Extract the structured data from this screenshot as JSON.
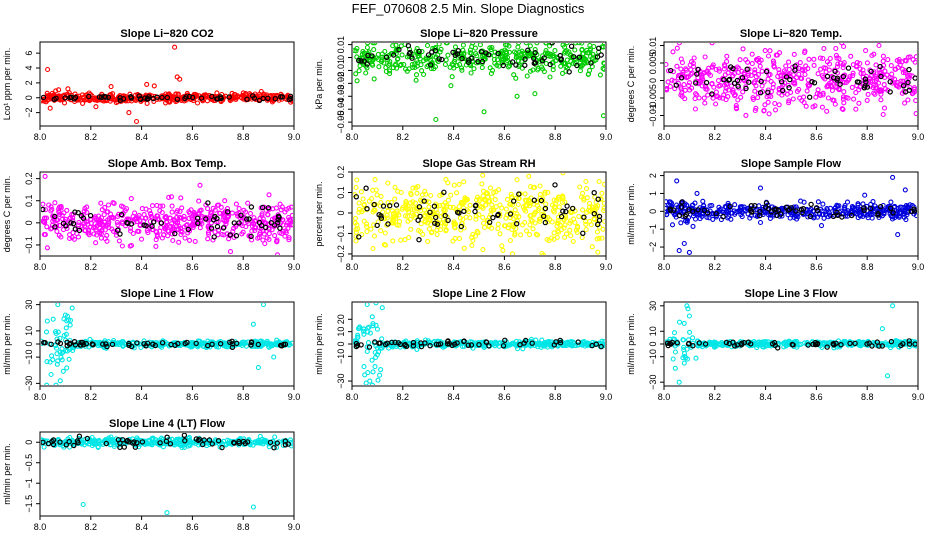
{
  "page": {
    "title": "FEF_070608  2.5 Min. Slope Diagnostics"
  },
  "style": {
    "hi_color": "#000000",
    "frame_color": "#000000"
  },
  "chart_data": [
    {
      "type": "scatter",
      "title": "Slope Li−820 CO2",
      "ylabel": "Lco¹ ppm per min.",
      "xlim": [
        8.0,
        9.0
      ],
      "ylim": [
        -3.8,
        7.5
      ],
      "xticks": [
        "8.0",
        "8.2",
        "8.4",
        "8.6",
        "8.8",
        "9.0"
      ],
      "yticks": [
        -2,
        0,
        2,
        4,
        6
      ],
      "color": "#ff0000",
      "noise": 0.3,
      "hi_noise": 0.15,
      "n": 420,
      "nhi": 55,
      "seed": 11,
      "outliers": [
        [
          8.03,
          3.8
        ],
        [
          8.04,
          -1.4
        ],
        [
          8.11,
          1.2
        ],
        [
          8.22,
          -1.2
        ],
        [
          8.28,
          1.5
        ],
        [
          8.35,
          -2.0
        ],
        [
          8.38,
          -3.2
        ],
        [
          8.42,
          1.8
        ],
        [
          8.45,
          1.6
        ],
        [
          8.53,
          6.8
        ],
        [
          8.54,
          2.8
        ],
        [
          8.55,
          2.5
        ],
        [
          8.62,
          -0.7
        ],
        [
          8.88,
          0.5
        ]
      ]
    },
    {
      "type": "scatter",
      "title": "Slope Li−820 Pressure",
      "ylabel": "kPa per min.",
      "xlim": [
        8.0,
        9.0
      ],
      "ylim": [
        -0.053,
        0.012
      ],
      "xticks": [
        "8.0",
        "8.2",
        "8.4",
        "8.6",
        "8.8",
        "9.0"
      ],
      "yticks": [
        -0.05,
        -0.04,
        -0.03,
        -0.02,
        -0.01,
        0.0,
        0.01
      ],
      "color": "#00cc00",
      "noise": 0.006,
      "hi_noise": 0.004,
      "n": 420,
      "nhi": 60,
      "seed": 23,
      "outliers": [
        [
          8.02,
          -0.018
        ],
        [
          8.33,
          -0.048
        ],
        [
          8.52,
          -0.042
        ],
        [
          8.65,
          -0.03
        ],
        [
          8.99,
          -0.045
        ],
        [
          8.72,
          -0.028
        ]
      ]
    },
    {
      "type": "scatter",
      "title": "Slope Li−820 Temp.",
      "ylabel": "degrees C per min.",
      "xlim": [
        8.0,
        9.0
      ],
      "ylim": [
        -0.013,
        0.011
      ],
      "xticks": [
        "8.0",
        "8.2",
        "8.4",
        "8.6",
        "8.8",
        "9.0"
      ],
      "yticks": [
        -0.01,
        -0.005,
        0.0,
        0.005,
        0.01
      ],
      "color": "#ff00ff",
      "noise": 0.004,
      "hi_noise": 0.0025,
      "n": 520,
      "nhi": 60,
      "seed": 37,
      "outliers": []
    },
    {
      "type": "scatter",
      "title": "Slope Amb. Box Temp.",
      "ylabel": "degrees C per min.",
      "xlim": [
        8.0,
        9.0
      ],
      "ylim": [
        -0.15,
        0.23
      ],
      "xticks": [
        "8.0",
        "8.2",
        "8.4",
        "8.6",
        "8.8",
        "9.0"
      ],
      "yticks": [
        -0.1,
        0.0,
        0.1,
        0.2
      ],
      "color": "#ff00ff",
      "noise": 0.045,
      "hi_noise": 0.03,
      "n": 520,
      "nhi": 60,
      "seed": 41,
      "outliers": [
        [
          8.02,
          0.21
        ],
        [
          8.63,
          0.17
        ],
        [
          8.75,
          -0.13
        ]
      ]
    },
    {
      "type": "scatter",
      "title": "Slope Gas Stream RH",
      "ylabel": "percent per min.",
      "xlim": [
        8.0,
        9.0
      ],
      "ylim": [
        -0.21,
        0.2
      ],
      "xticks": [
        "8.0",
        "8.2",
        "8.4",
        "8.6",
        "8.8",
        "9.0"
      ],
      "yticks": [
        -0.2,
        -0.1,
        0.0,
        0.1,
        0.2
      ],
      "color": "#ffff00",
      "noise": 0.075,
      "hi_noise": 0.05,
      "n": 520,
      "nhi": 60,
      "seed": 53,
      "outliers": []
    },
    {
      "type": "scatter",
      "title": "Slope Sample Flow",
      "ylabel": "ml/min per min.",
      "xlim": [
        8.0,
        9.0
      ],
      "ylim": [
        -2.5,
        2.2
      ],
      "xticks": [
        "8.0",
        "8.2",
        "8.4",
        "8.6",
        "8.8",
        "9.0"
      ],
      "yticks": [
        -2,
        -1,
        0,
        1,
        2
      ],
      "color": "#0000dd",
      "noise": 0.2,
      "hi_noise": 0.2,
      "n": 420,
      "nhi": 60,
      "seed": 67,
      "outliers": [
        [
          8.05,
          1.7
        ],
        [
          8.06,
          -2.2
        ],
        [
          8.08,
          -1.8
        ],
        [
          8.1,
          -2.3
        ],
        [
          8.13,
          1.0
        ],
        [
          8.38,
          1.3
        ],
        [
          8.62,
          -0.8
        ],
        [
          8.79,
          0.9
        ],
        [
          8.9,
          1.9
        ],
        [
          8.92,
          -1.3
        ],
        [
          8.95,
          1.2
        ]
      ],
      "burst": {
        "from": 8.02,
        "to": 8.12,
        "scale": 1.3
      }
    },
    {
      "type": "scatter",
      "title": "Slope Line 1 Flow",
      "ylabel": "ml/min per min.",
      "xlim": [
        8.0,
        9.0
      ],
      "ylim": [
        -32,
        32
      ],
      "xticks": [
        "8.0",
        "8.2",
        "8.4",
        "8.6",
        "8.8",
        "9.0"
      ],
      "yticks": [
        -30,
        -10,
        0,
        10,
        30
      ],
      "color": "#00e6e6",
      "noise": 1.2,
      "hi_noise": 0.8,
      "n": 380,
      "nhi": 55,
      "seed": 71,
      "outliers": [
        [
          8.07,
          30
        ],
        [
          8.08,
          -28
        ],
        [
          8.1,
          22
        ],
        [
          8.05,
          -12
        ],
        [
          8.12,
          18
        ],
        [
          8.88,
          30
        ],
        [
          8.86,
          -18
        ],
        [
          8.84,
          15
        ],
        [
          8.92,
          -10
        ]
      ],
      "burst": {
        "from": 8.02,
        "to": 8.13,
        "scale": 12
      }
    },
    {
      "type": "scatter",
      "title": "Slope Line 2 Flow",
      "ylabel": "ml/min per min.",
      "xlim": [
        8.0,
        9.0
      ],
      "ylim": [
        -34,
        34
      ],
      "xticks": [
        "8.0",
        "8.2",
        "8.4",
        "8.6",
        "8.8",
        "9.0"
      ],
      "yticks": [
        -30,
        -10,
        0,
        10,
        20
      ],
      "color": "#00e6e6",
      "noise": 1.3,
      "hi_noise": 1.5,
      "n": 380,
      "nhi": 55,
      "seed": 83,
      "outliers": [
        [
          8.06,
          32
        ],
        [
          8.07,
          -30
        ],
        [
          8.08,
          22
        ],
        [
          8.05,
          -25
        ],
        [
          8.1,
          12
        ]
      ],
      "burst": {
        "from": 8.02,
        "to": 8.12,
        "scale": 12
      }
    },
    {
      "type": "scatter",
      "title": "Slope Line 3 Flow",
      "ylabel": "ml/min per min.",
      "xlim": [
        8.0,
        9.0
      ],
      "ylim": [
        -33,
        33
      ],
      "xticks": [
        "8.0",
        "8.2",
        "8.4",
        "8.6",
        "8.8",
        "9.0"
      ],
      "yticks": [
        -30,
        -10,
        0,
        10,
        30
      ],
      "color": "#00e6e6",
      "noise": 1.2,
      "hi_noise": 1.2,
      "n": 380,
      "nhi": 55,
      "seed": 97,
      "outliers": [
        [
          8.09,
          30
        ],
        [
          8.1,
          22
        ],
        [
          8.08,
          -15
        ],
        [
          8.06,
          -30
        ],
        [
          8.9,
          30
        ],
        [
          8.88,
          -25
        ],
        [
          8.86,
          12
        ]
      ],
      "burst": {
        "from": 8.03,
        "to": 8.13,
        "scale": 10
      }
    },
    {
      "type": "scatter",
      "title": "Slope Line 4 (LT) Flow",
      "ylabel": "ml/min per min.",
      "xlim": [
        8.0,
        9.0
      ],
      "ylim": [
        -1.8,
        0.25
      ],
      "xticks": [
        "8.0",
        "8.2",
        "8.4",
        "8.6",
        "8.8",
        "9.0"
      ],
      "yticks": [
        -1.5,
        -1.0,
        -0.5,
        0.0
      ],
      "color": "#00e6e6",
      "noise": 0.05,
      "hi_noise": 0.06,
      "n": 380,
      "nhi": 55,
      "seed": 101,
      "outliers": [
        [
          8.17,
          -1.52
        ],
        [
          8.5,
          -1.72
        ],
        [
          8.84,
          -1.58
        ]
      ]
    }
  ]
}
